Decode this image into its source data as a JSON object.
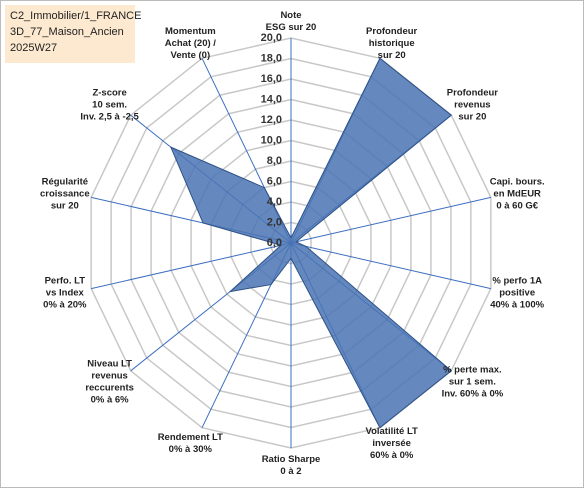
{
  "chart_data": {
    "type": "radar",
    "title": [
      "C2_Immobilier/1_FRANCE",
      "3D_77_Maison_Ancien",
      "2025W27"
    ],
    "categories": [
      [
        "Note",
        "ESG sur 20"
      ],
      [
        "Profondeur",
        "historique",
        "sur 20"
      ],
      [
        "Profondeur",
        "revenus",
        "sur 20"
      ],
      [
        "Capi. bours.",
        "en MdEUR",
        "0 à 60 G€"
      ],
      [
        "% perfo 1A",
        "positive",
        "40% à 100%"
      ],
      [
        "% perte max.",
        "sur 1 sem.",
        "Inv. 60% à 0%"
      ],
      [
        "Volatilité LT",
        "inversée",
        "60% à 0%"
      ],
      [
        "Ratio Sharpe",
        "0 à 2"
      ],
      [
        "Rendement LT",
        "0% à 30%"
      ],
      [
        "Niveau LT",
        "revenus",
        "reccurents",
        "0% à 6%"
      ],
      [
        "Perfo. LT",
        "vs Index",
        "0% à 20%"
      ],
      [
        "Régularité",
        "croissance",
        "sur 20"
      ],
      [
        "Z-score",
        "10 sem.",
        "Inv. 2,5 à -2,5"
      ],
      [
        "Momentum",
        "Achat (20) /",
        "Vente (0)"
      ]
    ],
    "values": [
      0.5,
      20,
      20,
      0.5,
      1.5,
      20,
      20,
      1.5,
      4.5,
      7.6,
      1,
      8.8,
      15,
      6
    ],
    "color": "#4a74b4",
    "ylim": [
      0,
      20
    ],
    "yticks": [
      {
        "value": 0,
        "label": "0,0"
      },
      {
        "value": 2,
        "label": "2,0"
      },
      {
        "value": 4,
        "label": "4,0"
      },
      {
        "value": 6,
        "label": "6,0"
      },
      {
        "value": 8,
        "label": "8,0"
      },
      {
        "value": 10,
        "label": "10,0"
      },
      {
        "value": 12,
        "label": "12,0"
      },
      {
        "value": 14,
        "label": "14,0"
      },
      {
        "value": 16,
        "label": "16,0"
      },
      {
        "value": 18,
        "label": "18,0"
      },
      {
        "value": 20,
        "label": "20,0"
      }
    ],
    "grid": true
  }
}
